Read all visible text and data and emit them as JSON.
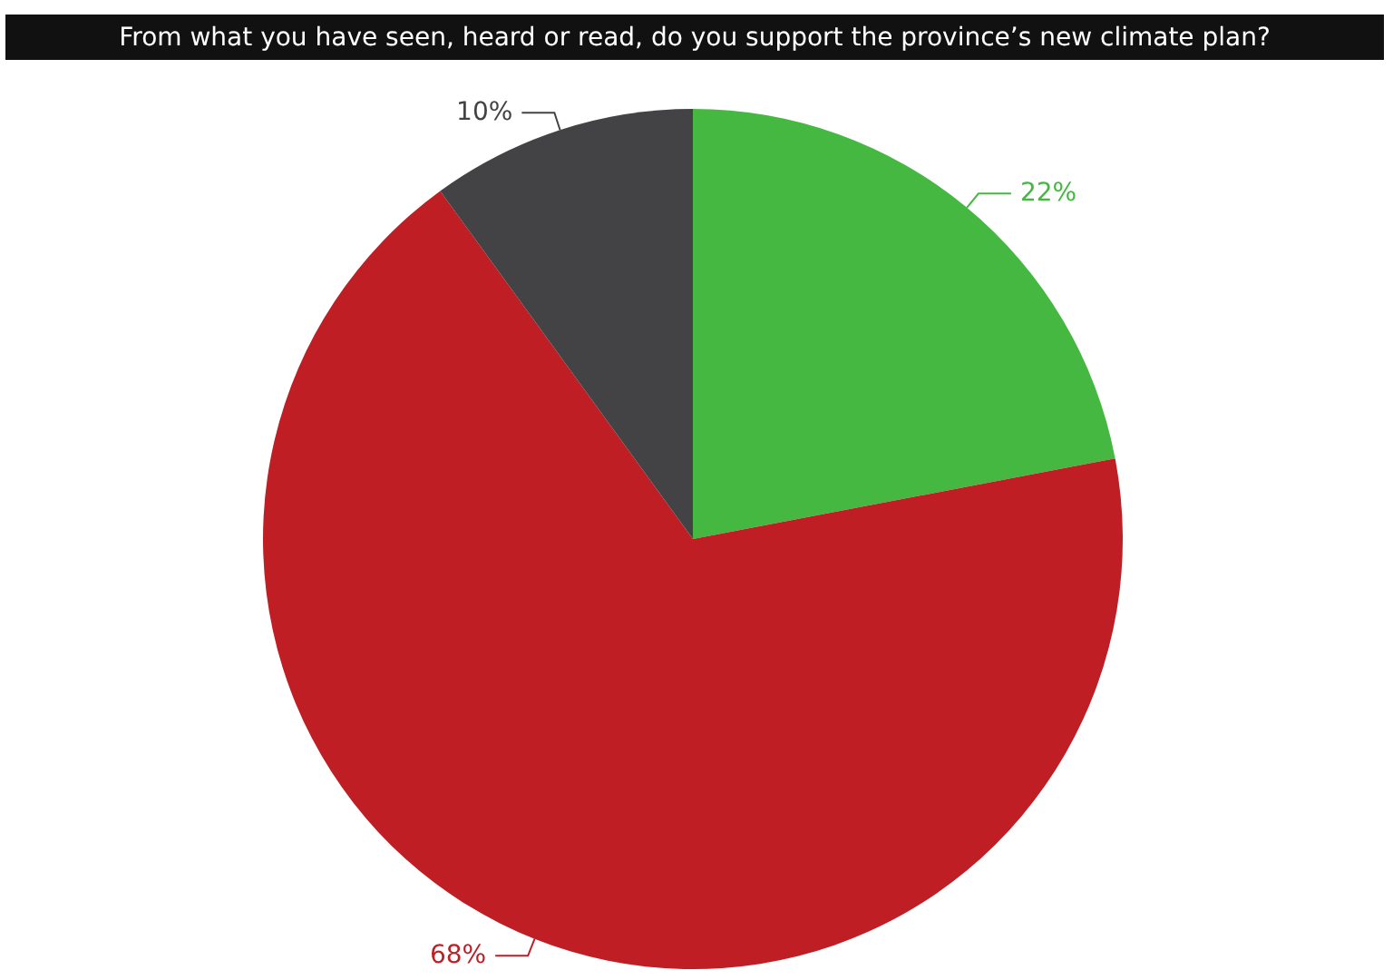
{
  "chart_data": {
    "type": "pie",
    "title": "From what you have seen, heard or read, do you support the province’s new climate plan?",
    "categories": [
      null,
      null,
      null
    ],
    "values": [
      22,
      68,
      10
    ],
    "value_labels": [
      "22%",
      "68%",
      "10%"
    ],
    "colors": [
      "#44b840",
      "#be1e24",
      "#434345"
    ]
  }
}
